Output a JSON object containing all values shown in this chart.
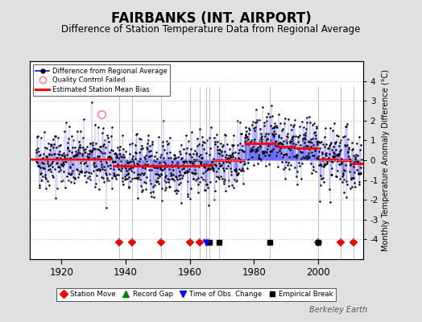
{
  "title": "FAIRBANKS (INT. AIRPORT)",
  "subtitle": "Difference of Station Temperature Data from Regional Average",
  "ylabel": "Monthly Temperature Anomaly Difference (°C)",
  "xlabel_years": [
    1920,
    1940,
    1960,
    1980,
    2000
  ],
  "ylim": [
    -5,
    5
  ],
  "xlim": [
    1910,
    2014
  ],
  "background_color": "#e0e0e0",
  "plot_bg_color": "#ffffff",
  "title_fontsize": 12,
  "subtitle_fontsize": 8.5,
  "watermark": "Berkeley Earth",
  "seed": 42,
  "bias_segments": [
    {
      "xstart": 1910,
      "xend": 1936,
      "bias": 0.05
    },
    {
      "xstart": 1936,
      "xend": 1948,
      "bias": -0.3
    },
    {
      "xstart": 1948,
      "xend": 1963,
      "bias": -0.3
    },
    {
      "xstart": 1963,
      "xend": 1967,
      "bias": -0.25
    },
    {
      "xstart": 1967,
      "xend": 1977,
      "bias": 0.0
    },
    {
      "xstart": 1977,
      "xend": 1987,
      "bias": 0.85
    },
    {
      "xstart": 1987,
      "xend": 1993,
      "bias": 0.7
    },
    {
      "xstart": 1993,
      "xend": 2000,
      "bias": 0.6
    },
    {
      "xstart": 2000,
      "xend": 2006,
      "bias": 0.05
    },
    {
      "xstart": 2006,
      "xend": 2010,
      "bias": 0.0
    },
    {
      "xstart": 2010,
      "xend": 2014,
      "bias": -0.15
    }
  ],
  "station_moves": [
    1938,
    1942,
    1951,
    1960,
    1963,
    2000,
    2007,
    2011
  ],
  "empirical_breaks": [
    1966,
    1969,
    1985,
    2000
  ],
  "obs_changes": [
    1965
  ],
  "qc_failed_x": [
    1932.5
  ],
  "qc_failed_y": [
    2.3
  ],
  "event_vlines": [
    1938,
    1942,
    1951,
    1960,
    1963,
    1965,
    1966,
    1969,
    1985,
    2000,
    2007,
    2011
  ]
}
